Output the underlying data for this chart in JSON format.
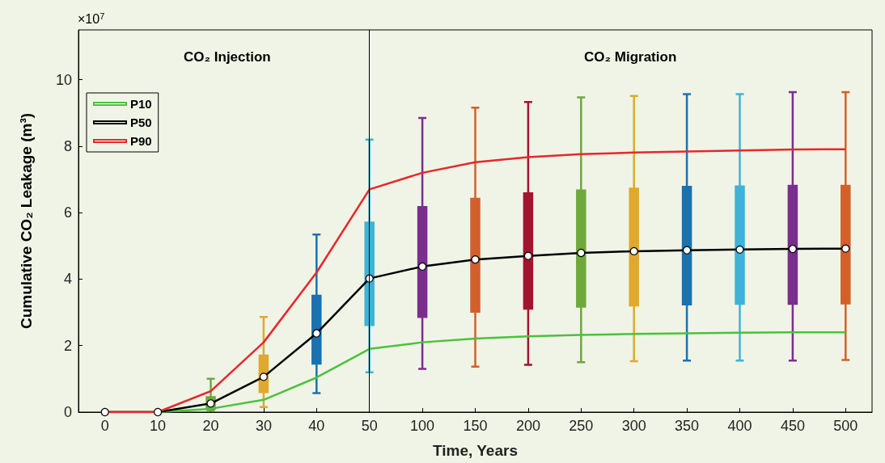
{
  "chart_data": {
    "type": "box",
    "xlabel": "Time, Years",
    "ylabel": "Cumulative CO₂ Leakage (m³)",
    "annotations": [
      "×10$^{7}$",
      "CO₂ Injection",
      "CO₂ Migration"
    ],
    "categories": [
      "0",
      "10",
      "20",
      "30",
      "40",
      "50",
      "100",
      "150",
      "200",
      "250",
      "300",
      "350",
      "400",
      "450",
      "500"
    ],
    "colors": [
      "#d35f2a",
      "#a0162e",
      "#6fa83c",
      "#e0a82e",
      "#1a72b0",
      "#3fb2d8",
      "#7a2e8e",
      "#d35f2a",
      "#a0162e",
      "#6fa83c",
      "#e0a82e",
      "#1a72b0",
      "#3fb2d8",
      "#7a2e8e",
      "#d35f2a"
    ],
    "boxes": [
      {
        "low": 0,
        "q1": 0,
        "median": 0,
        "q3": 0,
        "high": 0
      },
      {
        "low": 0,
        "q1": 0,
        "median": 0,
        "q3": 0,
        "high": 0
      },
      {
        "low": 0.05,
        "q1": 0.1,
        "median": 0.26,
        "q3": 0.45,
        "high": 1.0
      },
      {
        "low": 0.15,
        "q1": 0.6,
        "median": 1.06,
        "q3": 1.7,
        "high": 2.86
      },
      {
        "low": 0.57,
        "q1": 1.46,
        "median": 2.37,
        "q3": 3.5,
        "high": 5.34
      },
      {
        "low": 1.2,
        "q1": 2.62,
        "median": 4.02,
        "q3": 5.7,
        "high": 8.2
      },
      {
        "low": 1.3,
        "q1": 2.86,
        "median": 4.38,
        "q3": 6.17,
        "high": 8.85
      },
      {
        "low": 1.37,
        "q1": 3.02,
        "median": 4.59,
        "q3": 6.42,
        "high": 9.16
      },
      {
        "low": 1.42,
        "q1": 3.11,
        "median": 4.7,
        "q3": 6.58,
        "high": 9.33
      },
      {
        "low": 1.5,
        "q1": 3.17,
        "median": 4.79,
        "q3": 6.67,
        "high": 9.47
      },
      {
        "low": 1.53,
        "q1": 3.21,
        "median": 4.84,
        "q3": 6.72,
        "high": 9.51
      },
      {
        "low": 1.55,
        "q1": 3.24,
        "median": 4.87,
        "q3": 6.78,
        "high": 9.57
      },
      {
        "low": 1.55,
        "q1": 3.26,
        "median": 4.89,
        "q3": 6.79,
        "high": 9.57
      },
      {
        "low": 1.55,
        "q1": 3.26,
        "median": 4.91,
        "q3": 6.81,
        "high": 9.63
      },
      {
        "low": 1.57,
        "q1": 3.27,
        "median": 4.92,
        "q3": 6.81,
        "high": 9.63
      }
    ],
    "series": [
      {
        "name": "P10",
        "type": "line",
        "color": "#4cc13c",
        "marker": "none",
        "values": [
          0,
          0,
          0.1,
          0.37,
          1.04,
          1.9,
          2.1,
          2.21,
          2.28,
          2.32,
          2.35,
          2.37,
          2.39,
          2.4,
          2.4
        ]
      },
      {
        "name": "P50",
        "type": "line",
        "color": "#000000",
        "marker": "circle",
        "values": [
          0,
          0,
          0.26,
          1.06,
          2.37,
          4.02,
          4.38,
          4.59,
          4.7,
          4.79,
          4.84,
          4.87,
          4.89,
          4.91,
          4.92
        ]
      },
      {
        "name": "P90",
        "type": "line",
        "color": "#e8272a",
        "marker": "none",
        "values": [
          0,
          0,
          0.63,
          2.1,
          4.2,
          6.7,
          7.2,
          7.52,
          7.67,
          7.76,
          7.81,
          7.84,
          7.87,
          7.9,
          7.91
        ]
      }
    ],
    "ref_lines": [
      {
        "axis": "x",
        "value": "50",
        "color": "#000000"
      }
    ],
    "ylim": [
      0,
      11.5
    ],
    "yticks": [
      0,
      2,
      4,
      6,
      8,
      10
    ],
    "grid": false,
    "legend": "top left",
    "line_style": "solid"
  }
}
